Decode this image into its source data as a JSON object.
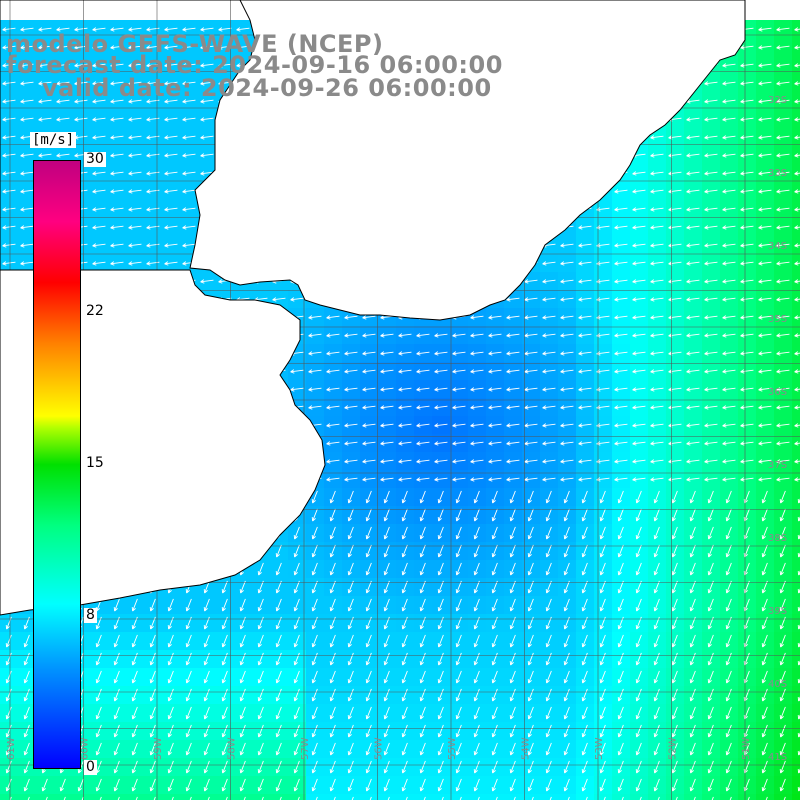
{
  "title": {
    "line1": "modelo GEFS-WAVE (NCEP)",
    "line2": "forecast date: 2024-09-16 06:00:00",
    "line3": "valid date: 2024-09-26 06:00:00"
  },
  "colorbar": {
    "unit": "[m/s]",
    "ticks": [
      "30",
      "22",
      "15",
      "8",
      "0"
    ],
    "colors": [
      "#0000ff",
      "#0090ff",
      "#00ffff",
      "#00ff80",
      "#00e000",
      "#ffff00",
      "#ff8000",
      "#ff0000",
      "#c00080"
    ]
  },
  "map": {
    "lon_labels": [
      "61W",
      "60W",
      "59W",
      "58W",
      "57W",
      "56W",
      "55W",
      "54W",
      "53W",
      "52W",
      "51W"
    ],
    "lat_labels": [
      "32S",
      "33S",
      "34S",
      "35S",
      "36S",
      "37S",
      "38S",
      "39S",
      "40S",
      "41S"
    ],
    "land_color": "#ffffff",
    "coast_color": "#000000",
    "arrow_color": "#ffffff"
  }
}
